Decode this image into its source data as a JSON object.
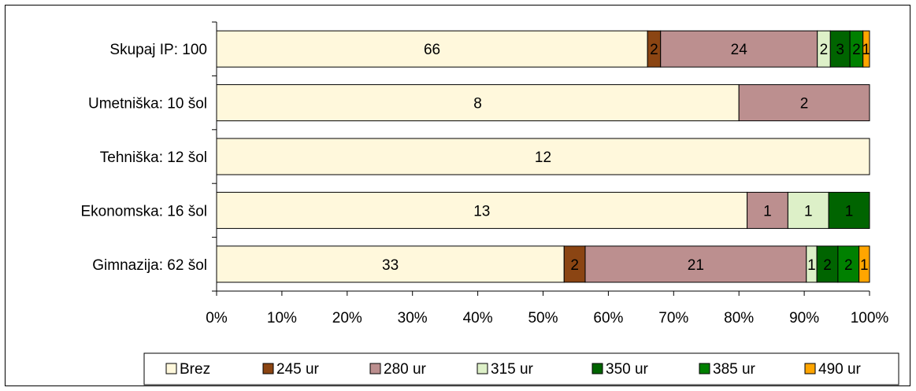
{
  "chart_data": {
    "type": "bar",
    "orientation": "horizontal",
    "stacked": "percent",
    "categories": [
      "Skupaj IP: 100",
      "Umetniška: 10 šol",
      "Tehniška: 12 šol",
      "Ekonomska: 16 šol",
      "Gimnazija: 62 šol"
    ],
    "series": [
      {
        "name": "Brez",
        "color": "#FFF8DC",
        "values": [
          66,
          8,
          12,
          13,
          33
        ]
      },
      {
        "name": "245 ur",
        "color": "#8B4513",
        "values": [
          2,
          0,
          0,
          0,
          2
        ]
      },
      {
        "name": "280 ur",
        "color": "#BC8F8F",
        "values": [
          24,
          2,
          0,
          1,
          21
        ]
      },
      {
        "name": "315 ur",
        "color": "#DDF0C8",
        "values": [
          2,
          0,
          0,
          1,
          1
        ]
      },
      {
        "name": "350 ur",
        "color": "#006400",
        "values": [
          3,
          0,
          0,
          1,
          2
        ]
      },
      {
        "name": "385 ur",
        "color": "#008000",
        "values": [
          2,
          0,
          0,
          0,
          2
        ]
      },
      {
        "name": "490 ur",
        "color": "#FFA500",
        "values": [
          1,
          0,
          0,
          0,
          1
        ]
      }
    ],
    "xlim": [
      0,
      100
    ],
    "x_ticks": [
      "0%",
      "10%",
      "20%",
      "30%",
      "40%",
      "50%",
      "60%",
      "70%",
      "80%",
      "90%",
      "100%"
    ],
    "legend_position": "bottom",
    "grid": false
  }
}
